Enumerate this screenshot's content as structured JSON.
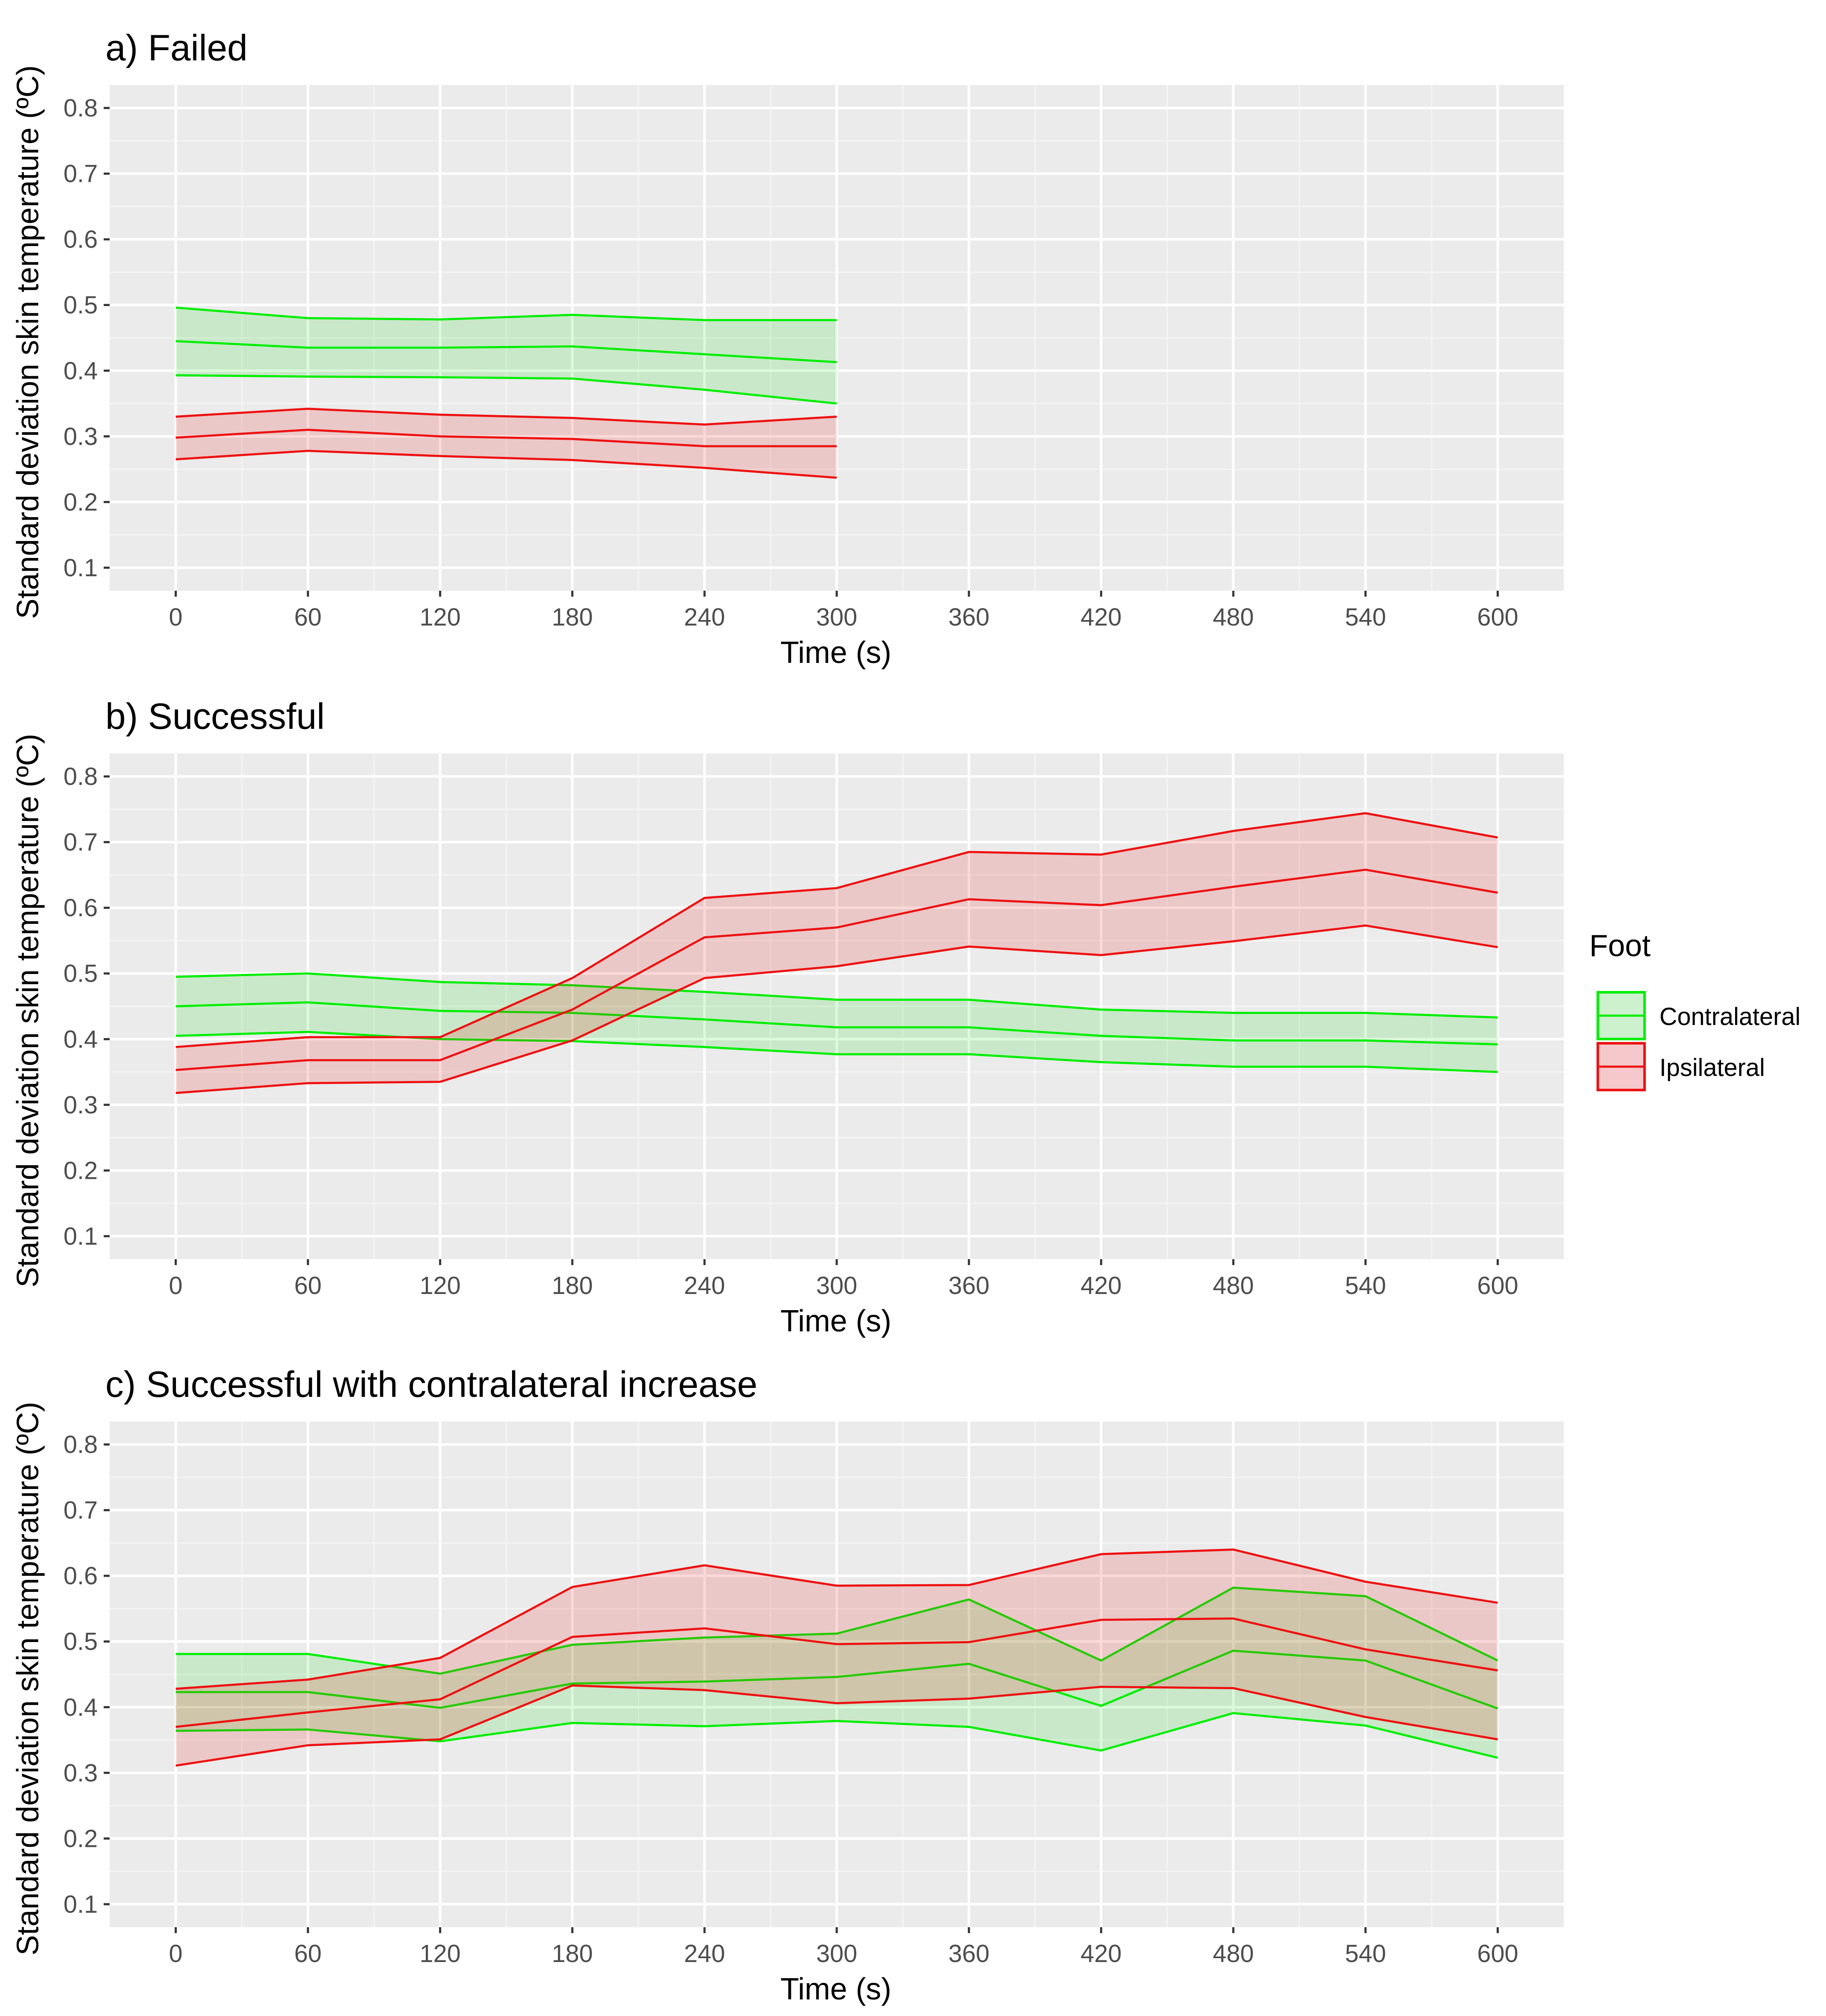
{
  "figure": {
    "legend": {
      "title": "Foot",
      "placement": "right",
      "entries": [
        {
          "label": "Contralateral",
          "color": "#00ee00",
          "fill": "#cdf0cd"
        },
        {
          "label": "Ipsilateral",
          "color": "#ee1111",
          "fill": "#f5c8cc"
        }
      ]
    }
  },
  "chart_data": [
    {
      "type": "line",
      "title": "a) Failed",
      "xlabel": "Time (s)",
      "ylabel": "Standard deviation skin temperature (ºC)",
      "xlim": [
        -30,
        630
      ],
      "ylim": [
        0.065,
        0.835
      ],
      "xticks": [
        0,
        60,
        120,
        180,
        240,
        300,
        360,
        420,
        480,
        540,
        600
      ],
      "yticks": [
        0.1,
        0.2,
        0.3,
        0.4,
        0.5,
        0.6,
        0.7,
        0.8
      ],
      "grid": true,
      "series": [
        {
          "name": "Contralateral",
          "x": [
            0,
            60,
            120,
            180,
            240,
            300
          ],
          "mean": [
            0.445,
            0.435,
            0.435,
            0.437,
            0.425,
            0.413
          ],
          "upper": [
            0.496,
            0.48,
            0.478,
            0.485,
            0.477,
            0.477
          ],
          "lower": [
            0.393,
            0.391,
            0.39,
            0.388,
            0.371,
            0.35
          ]
        },
        {
          "name": "Ipsilateral",
          "x": [
            0,
            60,
            120,
            180,
            240,
            300
          ],
          "mean": [
            0.298,
            0.31,
            0.3,
            0.296,
            0.285,
            0.285
          ],
          "upper": [
            0.33,
            0.342,
            0.333,
            0.328,
            0.318,
            0.33
          ],
          "lower": [
            0.265,
            0.278,
            0.27,
            0.264,
            0.252,
            0.237
          ]
        }
      ]
    },
    {
      "type": "line",
      "title": "b) Successful",
      "xlabel": "Time (s)",
      "ylabel": "Standard deviation skin temperature (ºC)",
      "xlim": [
        -30,
        630
      ],
      "ylim": [
        0.065,
        0.835
      ],
      "xticks": [
        0,
        60,
        120,
        180,
        240,
        300,
        360,
        420,
        480,
        540,
        600
      ],
      "yticks": [
        0.1,
        0.2,
        0.3,
        0.4,
        0.5,
        0.6,
        0.7,
        0.8
      ],
      "grid": true,
      "series": [
        {
          "name": "Contralateral",
          "x": [
            0,
            60,
            120,
            180,
            240,
            300,
            360,
            420,
            480,
            540,
            600
          ],
          "mean": [
            0.45,
            0.456,
            0.443,
            0.44,
            0.43,
            0.418,
            0.418,
            0.405,
            0.398,
            0.398,
            0.392
          ],
          "upper": [
            0.495,
            0.5,
            0.487,
            0.482,
            0.472,
            0.46,
            0.46,
            0.445,
            0.44,
            0.44,
            0.433
          ],
          "lower": [
            0.405,
            0.411,
            0.4,
            0.397,
            0.388,
            0.377,
            0.377,
            0.365,
            0.358,
            0.358,
            0.35
          ]
        },
        {
          "name": "Ipsilateral",
          "x": [
            0,
            60,
            120,
            180,
            240,
            300,
            360,
            420,
            480,
            540,
            600
          ],
          "mean": [
            0.353,
            0.368,
            0.368,
            0.445,
            0.555,
            0.57,
            0.613,
            0.604,
            0.632,
            0.658,
            0.623
          ],
          "upper": [
            0.388,
            0.403,
            0.403,
            0.493,
            0.615,
            0.63,
            0.685,
            0.681,
            0.717,
            0.744,
            0.707
          ],
          "lower": [
            0.318,
            0.333,
            0.335,
            0.398,
            0.493,
            0.511,
            0.541,
            0.528,
            0.549,
            0.573,
            0.54
          ]
        }
      ]
    },
    {
      "type": "line",
      "title": "c) Successful with contralateral increase",
      "xlabel": "Time (s)",
      "ylabel": "Standard deviation skin temperature (ºC)",
      "xlim": [
        -30,
        630
      ],
      "ylim": [
        0.065,
        0.835
      ],
      "xticks": [
        0,
        60,
        120,
        180,
        240,
        300,
        360,
        420,
        480,
        540,
        600
      ],
      "yticks": [
        0.1,
        0.2,
        0.3,
        0.4,
        0.5,
        0.6,
        0.7,
        0.8
      ],
      "grid": true,
      "series": [
        {
          "name": "Contralateral",
          "x": [
            0,
            60,
            120,
            180,
            240,
            300,
            360,
            420,
            480,
            540,
            600
          ],
          "mean": [
            0.423,
            0.423,
            0.399,
            0.436,
            0.439,
            0.446,
            0.466,
            0.402,
            0.486,
            0.471,
            0.398
          ],
          "upper": [
            0.481,
            0.481,
            0.451,
            0.495,
            0.506,
            0.512,
            0.564,
            0.471,
            0.582,
            0.569,
            0.471
          ],
          "lower": [
            0.364,
            0.366,
            0.348,
            0.376,
            0.371,
            0.379,
            0.37,
            0.334,
            0.391,
            0.372,
            0.323
          ]
        },
        {
          "name": "Ipsilateral",
          "x": [
            0,
            60,
            120,
            180,
            240,
            300,
            360,
            420,
            480,
            540,
            600
          ],
          "mean": [
            0.37,
            0.392,
            0.412,
            0.507,
            0.52,
            0.496,
            0.499,
            0.533,
            0.535,
            0.488,
            0.456
          ],
          "upper": [
            0.428,
            0.442,
            0.475,
            0.583,
            0.616,
            0.585,
            0.586,
            0.633,
            0.64,
            0.591,
            0.559
          ],
          "lower": [
            0.311,
            0.342,
            0.351,
            0.433,
            0.426,
            0.406,
            0.413,
            0.431,
            0.429,
            0.385,
            0.351
          ]
        }
      ]
    }
  ]
}
